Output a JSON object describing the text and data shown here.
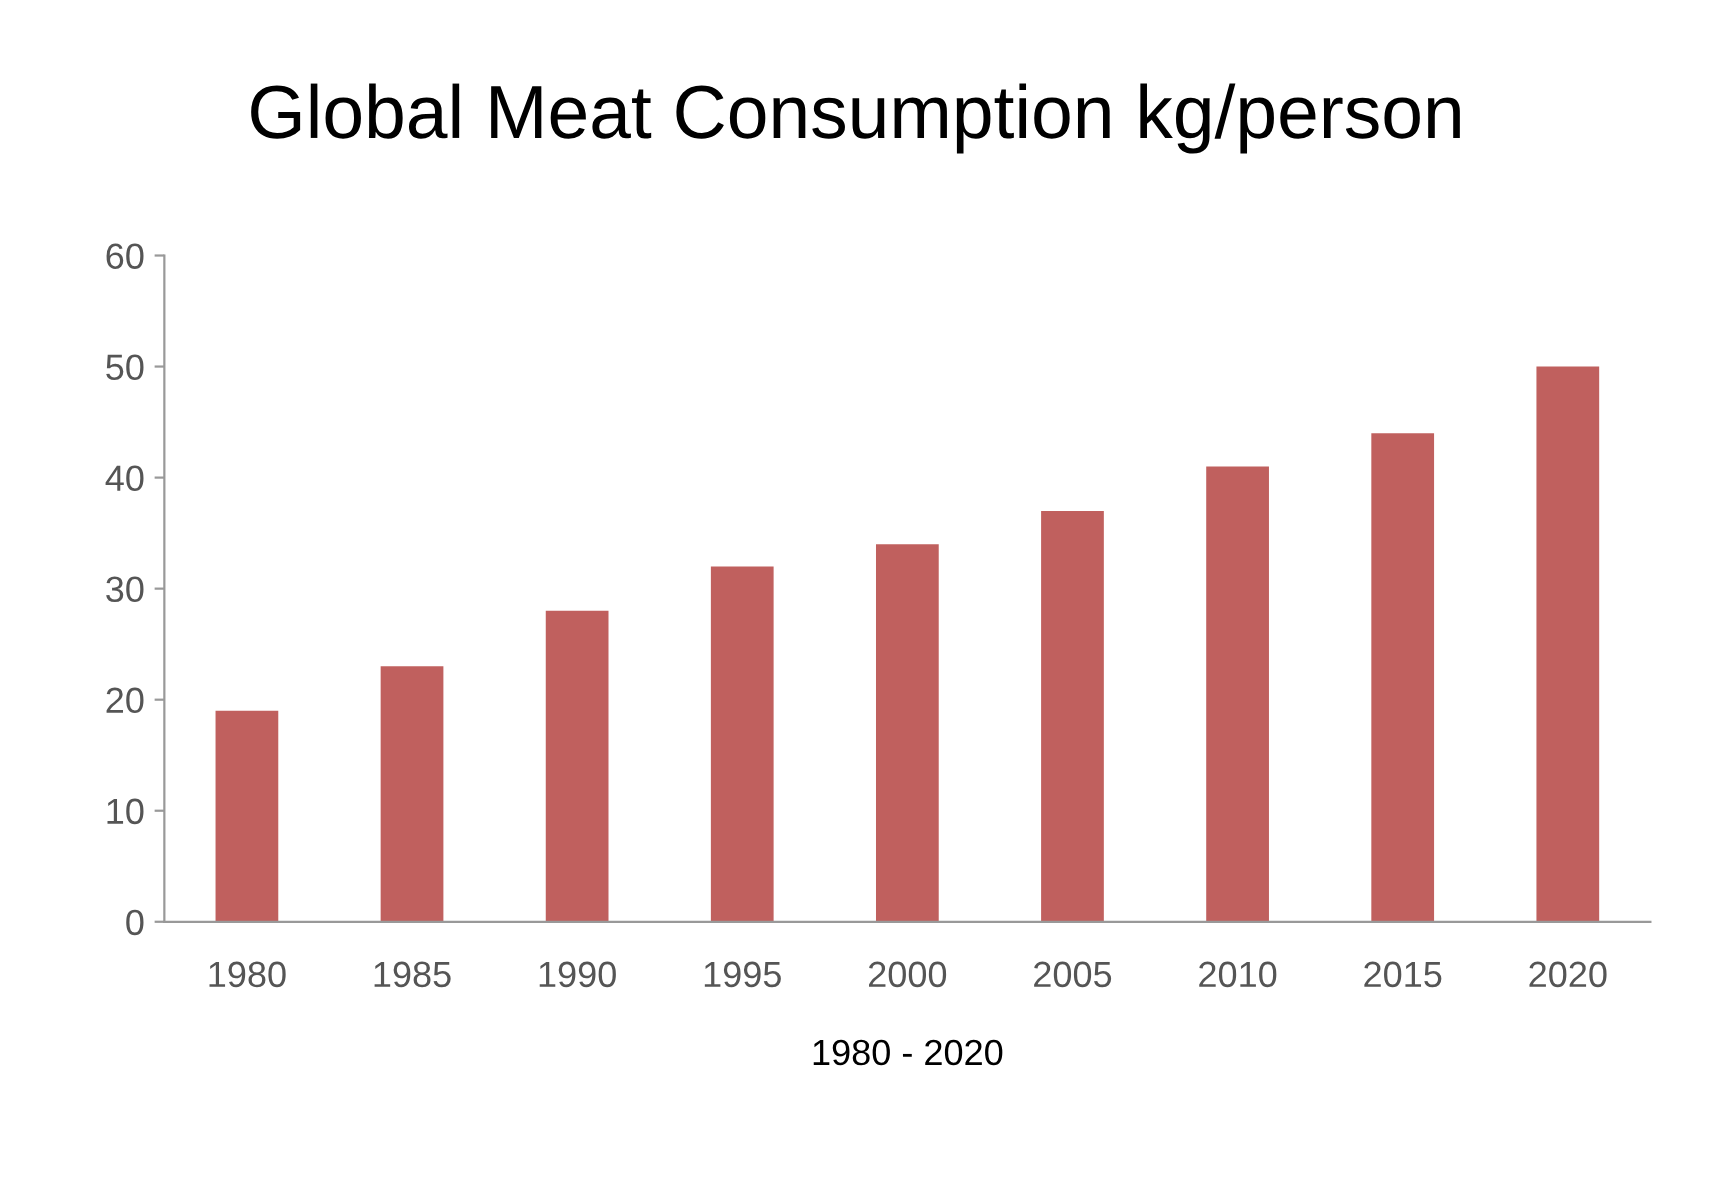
{
  "chart_data": {
    "type": "bar",
    "title": "Global Meat Consumption kg/person",
    "xlabel": "1980 - 2020",
    "categories": [
      "1980",
      "1985",
      "1990",
      "1995",
      "2000",
      "2005",
      "2010",
      "2015",
      "2020"
    ],
    "values": [
      19,
      23,
      28,
      32,
      34,
      37,
      41,
      44,
      50
    ],
    "color": "#c0605e",
    "ylim": [
      0,
      60
    ],
    "yticks": [
      0,
      10,
      20,
      30,
      40,
      50,
      60
    ],
    "grid": false,
    "legend": false
  }
}
